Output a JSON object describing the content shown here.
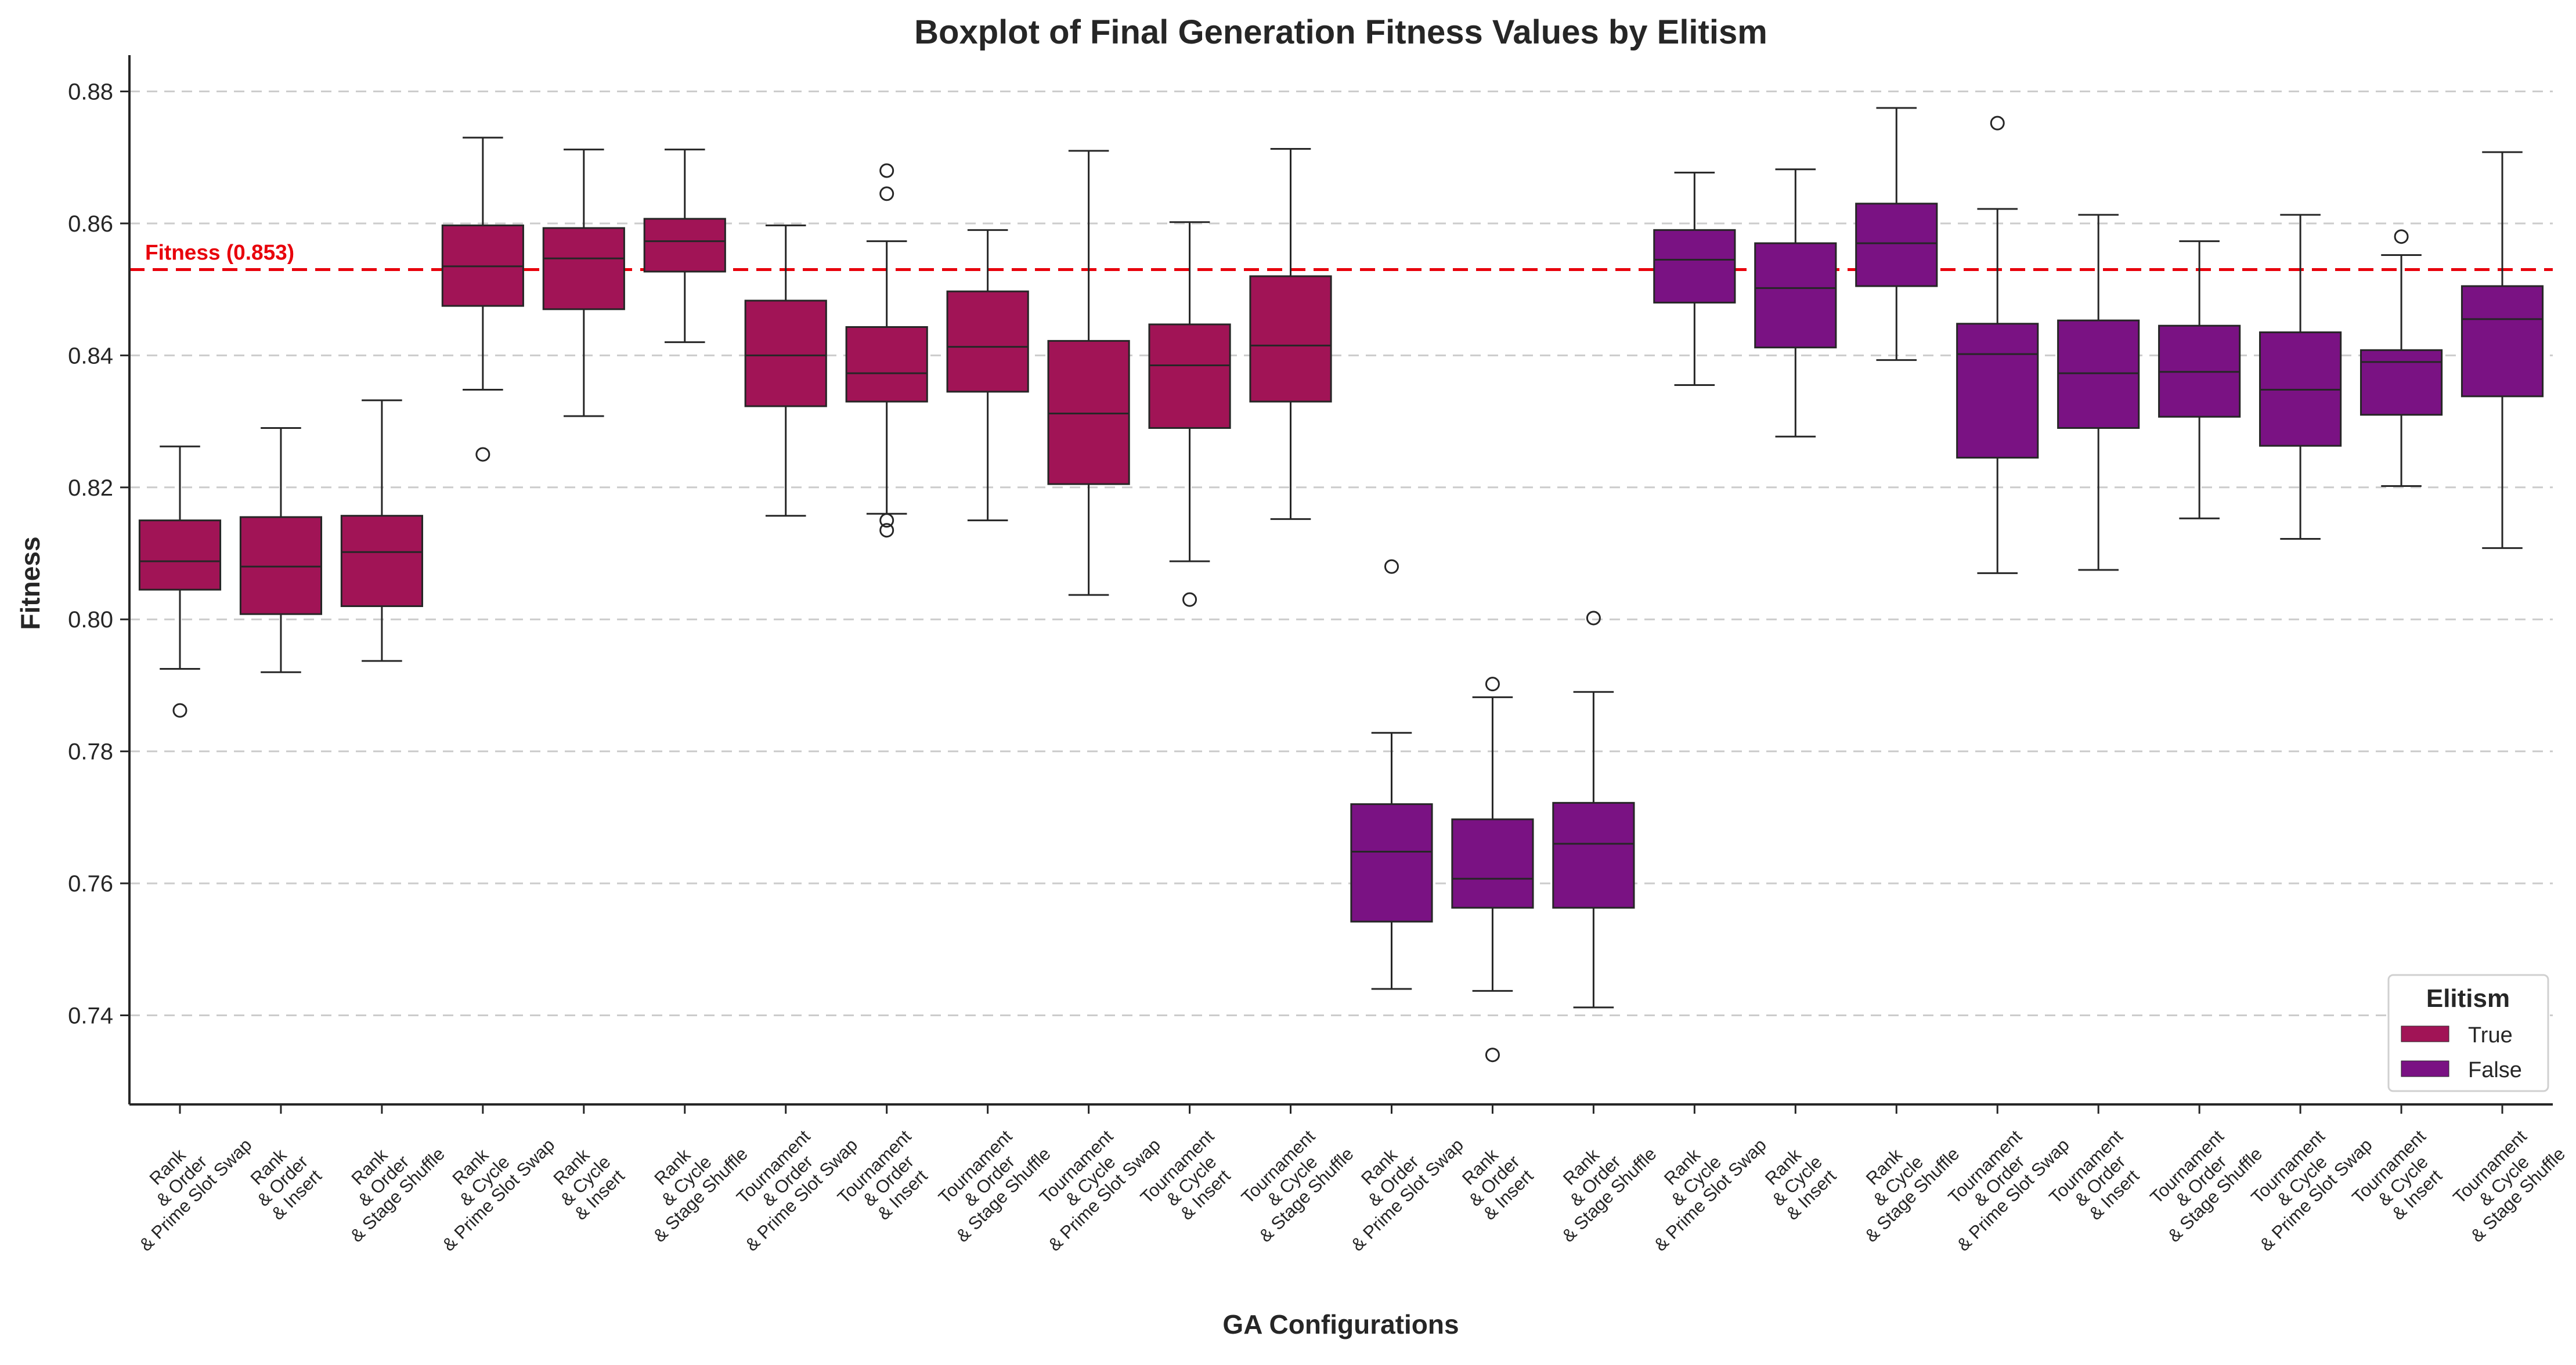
{
  "chart_data": {
    "type": "boxplot",
    "title": "Boxplot of Final Generation Fitness Values by Elitism",
    "xlabel": "GA Configurations",
    "ylabel": "Fitness",
    "ylim": [
      0.7265,
      0.8855
    ],
    "yticks": [
      "0.74",
      "0.76",
      "0.78",
      "0.80",
      "0.82",
      "0.84",
      "0.86",
      "0.88"
    ],
    "ytick_values": [
      0.74,
      0.76,
      0.78,
      0.8,
      0.82,
      0.84,
      0.86,
      0.88
    ],
    "grid": "horizontal dashed",
    "reference_line": {
      "value": 0.853,
      "label": "Fitness (0.853)",
      "color": "#e8000b"
    },
    "legend": {
      "title": "Elitism",
      "placement": "bottom-right",
      "items": [
        {
          "label": "True",
          "color": "#a11456"
        },
        {
          "label": "False",
          "color": "#7a1283"
        }
      ]
    },
    "categories": [
      [
        "Rank",
        "& Order",
        "& Prime Slot Swap"
      ],
      [
        "Rank",
        "& Order",
        "& Insert"
      ],
      [
        "Rank",
        "& Order",
        "& Stage Shuffle"
      ],
      [
        "Rank",
        "& Cycle",
        "& Prime Slot Swap"
      ],
      [
        "Rank",
        "& Cycle",
        "& Insert"
      ],
      [
        "Rank",
        "& Cycle",
        "& Stage Shuffle"
      ],
      [
        "Tournament",
        "& Order",
        "& Prime Slot Swap"
      ],
      [
        "Tournament",
        "& Order",
        "& Insert"
      ],
      [
        "Tournament",
        "& Order",
        "& Stage Shuffle"
      ],
      [
        "Tournament",
        "& Cycle",
        "& Prime Slot Swap"
      ],
      [
        "Tournament",
        "& Cycle",
        "& Insert"
      ],
      [
        "Tournament",
        "& Cycle",
        "& Stage Shuffle"
      ],
      [
        "Rank",
        "& Order",
        "& Prime Slot Swap"
      ],
      [
        "Rank",
        "& Order",
        "& Insert"
      ],
      [
        "Rank",
        "& Order",
        "& Stage Shuffle"
      ],
      [
        "Rank",
        "& Cycle",
        "& Prime Slot Swap"
      ],
      [
        "Rank",
        "& Cycle",
        "& Insert"
      ],
      [
        "Rank",
        "& Cycle",
        "& Stage Shuffle"
      ],
      [
        "Tournament",
        "& Order",
        "& Prime Slot Swap"
      ],
      [
        "Tournament",
        "& Order",
        "& Insert"
      ],
      [
        "Tournament",
        "& Order",
        "& Stage Shuffle"
      ],
      [
        "Tournament",
        "& Cycle",
        "& Prime Slot Swap"
      ],
      [
        "Tournament",
        "& Cycle",
        "& Insert"
      ],
      [
        "Tournament",
        "& Cycle",
        "& Stage Shuffle"
      ]
    ],
    "boxes": [
      {
        "elitism": "True",
        "whislo": 0.7925,
        "q1": 0.8045,
        "med": 0.8088,
        "q3": 0.815,
        "whishi": 0.8262,
        "fliers": [
          0.7862
        ]
      },
      {
        "elitism": "True",
        "whislo": 0.792,
        "q1": 0.8008,
        "med": 0.808,
        "q3": 0.8155,
        "whishi": 0.829,
        "fliers": []
      },
      {
        "elitism": "True",
        "whislo": 0.7937,
        "q1": 0.802,
        "med": 0.8102,
        "q3": 0.8157,
        "whishi": 0.8332,
        "fliers": []
      },
      {
        "elitism": "True",
        "whislo": 0.8348,
        "q1": 0.8475,
        "med": 0.8535,
        "q3": 0.8597,
        "whishi": 0.873,
        "fliers": [
          0.825
        ]
      },
      {
        "elitism": "True",
        "whislo": 0.8308,
        "q1": 0.847,
        "med": 0.8547,
        "q3": 0.8593,
        "whishi": 0.8712,
        "fliers": []
      },
      {
        "elitism": "True",
        "whislo": 0.842,
        "q1": 0.8527,
        "med": 0.8573,
        "q3": 0.8607,
        "whishi": 0.8712,
        "fliers": []
      },
      {
        "elitism": "True",
        "whislo": 0.8157,
        "q1": 0.8323,
        "med": 0.84,
        "q3": 0.8483,
        "whishi": 0.8597,
        "fliers": []
      },
      {
        "elitism": "True",
        "whislo": 0.816,
        "q1": 0.833,
        "med": 0.8373,
        "q3": 0.8443,
        "whishi": 0.8573,
        "fliers": [
          0.868,
          0.8645,
          0.815,
          0.8135
        ]
      },
      {
        "elitism": "True",
        "whislo": 0.815,
        "q1": 0.8345,
        "med": 0.8413,
        "q3": 0.8497,
        "whishi": 0.859,
        "fliers": []
      },
      {
        "elitism": "True",
        "whislo": 0.8037,
        "q1": 0.8205,
        "med": 0.8312,
        "q3": 0.8422,
        "whishi": 0.871,
        "fliers": []
      },
      {
        "elitism": "True",
        "whislo": 0.8088,
        "q1": 0.829,
        "med": 0.8385,
        "q3": 0.8447,
        "whishi": 0.8602,
        "fliers": [
          0.803
        ]
      },
      {
        "elitism": "True",
        "whislo": 0.8152,
        "q1": 0.833,
        "med": 0.8415,
        "q3": 0.852,
        "whishi": 0.8713,
        "fliers": []
      },
      {
        "elitism": "False",
        "whislo": 0.744,
        "q1": 0.7542,
        "med": 0.7648,
        "q3": 0.772,
        "whishi": 0.7828,
        "fliers": [
          0.808
        ]
      },
      {
        "elitism": "False",
        "whislo": 0.7437,
        "q1": 0.7563,
        "med": 0.7607,
        "q3": 0.7697,
        "whishi": 0.7882,
        "fliers": [
          0.7902,
          0.734
        ]
      },
      {
        "elitism": "False",
        "whislo": 0.7412,
        "q1": 0.7563,
        "med": 0.766,
        "q3": 0.7722,
        "whishi": 0.789,
        "fliers": [
          0.8002
        ]
      },
      {
        "elitism": "False",
        "whislo": 0.8355,
        "q1": 0.848,
        "med": 0.8545,
        "q3": 0.859,
        "whishi": 0.8677,
        "fliers": []
      },
      {
        "elitism": "False",
        "whislo": 0.8277,
        "q1": 0.8412,
        "med": 0.8502,
        "q3": 0.857,
        "whishi": 0.8682,
        "fliers": []
      },
      {
        "elitism": "False",
        "whislo": 0.8393,
        "q1": 0.8505,
        "med": 0.857,
        "q3": 0.863,
        "whishi": 0.8775,
        "fliers": []
      },
      {
        "elitism": "False",
        "whislo": 0.807,
        "q1": 0.8245,
        "med": 0.8402,
        "q3": 0.8448,
        "whishi": 0.8622,
        "fliers": [
          0.8752
        ]
      },
      {
        "elitism": "False",
        "whislo": 0.8075,
        "q1": 0.829,
        "med": 0.8373,
        "q3": 0.8453,
        "whishi": 0.8613,
        "fliers": []
      },
      {
        "elitism": "False",
        "whislo": 0.8153,
        "q1": 0.8307,
        "med": 0.8375,
        "q3": 0.8445,
        "whishi": 0.8573,
        "fliers": []
      },
      {
        "elitism": "False",
        "whislo": 0.8122,
        "q1": 0.8263,
        "med": 0.8348,
        "q3": 0.8435,
        "whishi": 0.8613,
        "fliers": []
      },
      {
        "elitism": "False",
        "whislo": 0.8202,
        "q1": 0.831,
        "med": 0.839,
        "q3": 0.8408,
        "whishi": 0.8552,
        "fliers": [
          0.858
        ]
      },
      {
        "elitism": "False",
        "whislo": 0.8108,
        "q1": 0.8338,
        "med": 0.8455,
        "q3": 0.8505,
        "whishi": 0.8708,
        "fliers": []
      }
    ]
  }
}
